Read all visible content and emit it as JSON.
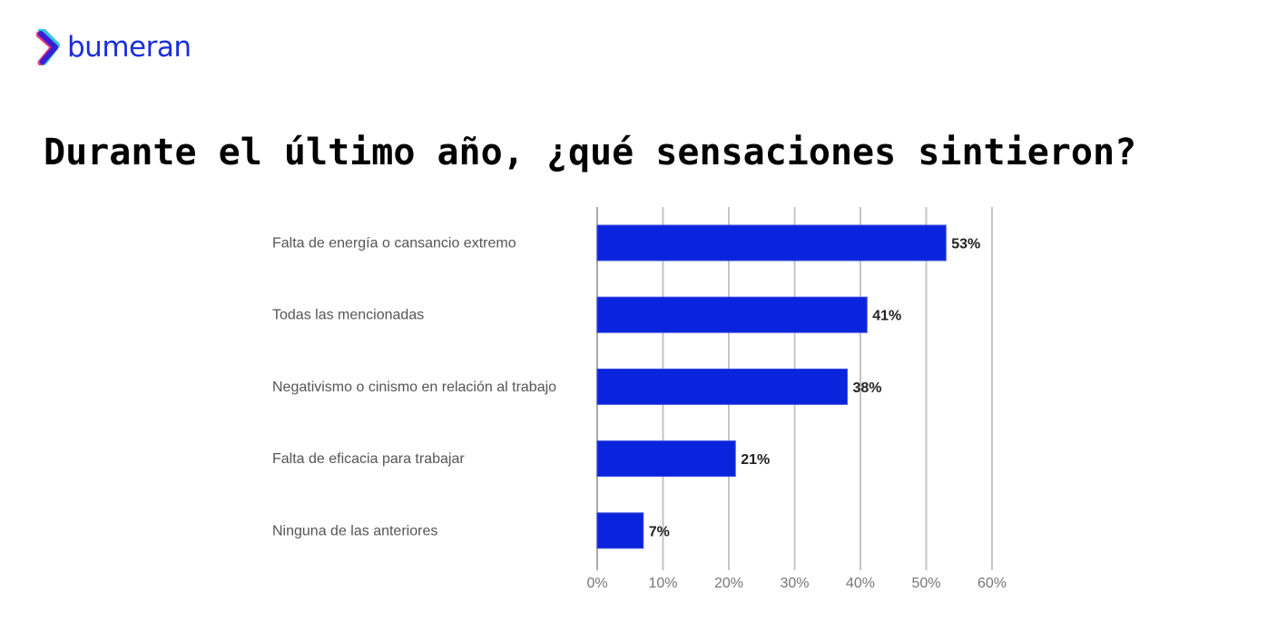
{
  "brand": {
    "name": "bumeran",
    "color": "#1a2fd8"
  },
  "title": "Durante el último año, ¿qué sensaciones sintieron?",
  "chart_data": {
    "type": "bar",
    "orientation": "horizontal",
    "categories": [
      "Falta de energía o cansancio extremo",
      "Todas las mencionadas",
      "Negativismo o cinismo en relación al trabajo",
      "Falta de eficacia para trabajar",
      "Ninguna de las anteriores"
    ],
    "values": [
      53,
      41,
      38,
      21,
      7
    ],
    "data_labels": [
      "53%",
      "41%",
      "38%",
      "21%",
      "7%"
    ],
    "xlim": [
      0,
      60
    ],
    "x_ticks": [
      "0%",
      "10%",
      "20%",
      "30%",
      "40%",
      "50%",
      "60%"
    ],
    "grid": true,
    "bar_color": "#0a23dc",
    "xlabel": "",
    "ylabel": ""
  }
}
